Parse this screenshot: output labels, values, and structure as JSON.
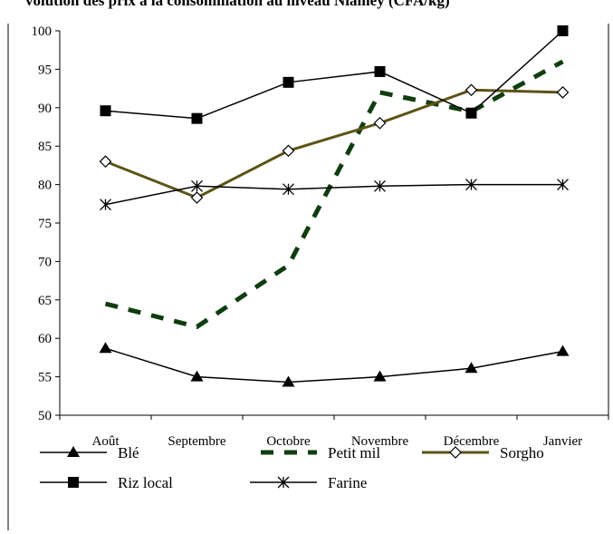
{
  "chart_data": {
    "type": "line",
    "title": "volution des prix a la consommation au niveau Niamey (CFA/kg)",
    "xlabel": "",
    "ylabel": "",
    "ylim": [
      50,
      100
    ],
    "yticks": [
      50,
      55,
      60,
      65,
      70,
      75,
      80,
      85,
      90,
      95,
      100
    ],
    "categories": [
      "Août",
      "Septembre",
      "Octobre",
      "Novembre",
      "Décembre",
      "Janvier"
    ],
    "grid": false,
    "legend_position": "bottom",
    "series": [
      {
        "name": "Blé",
        "values": [
          58.7,
          55.0,
          54.3,
          55.0,
          56.1,
          58.3
        ],
        "color": "#000000",
        "marker": "triangle",
        "style": "solid"
      },
      {
        "name": "Petit mil",
        "values": [
          64.5,
          61.5,
          69.5,
          92.0,
          89.5,
          96.0
        ],
        "color": "#0f3d0f",
        "marker": "none",
        "style": "dashed"
      },
      {
        "name": "Sorgho",
        "values": [
          83.0,
          78.3,
          84.4,
          88.0,
          92.3,
          92.0
        ],
        "color": "#5c5316",
        "marker": "diamond",
        "style": "solid"
      },
      {
        "name": "Riz local",
        "values": [
          89.6,
          88.6,
          93.3,
          94.7,
          89.3,
          100.0
        ],
        "color": "#000000",
        "marker": "square",
        "style": "solid"
      },
      {
        "name": "Farine",
        "values": [
          77.4,
          79.8,
          79.4,
          79.8,
          80.0,
          80.0
        ],
        "color": "#000000",
        "marker": "star",
        "style": "solid"
      }
    ]
  }
}
